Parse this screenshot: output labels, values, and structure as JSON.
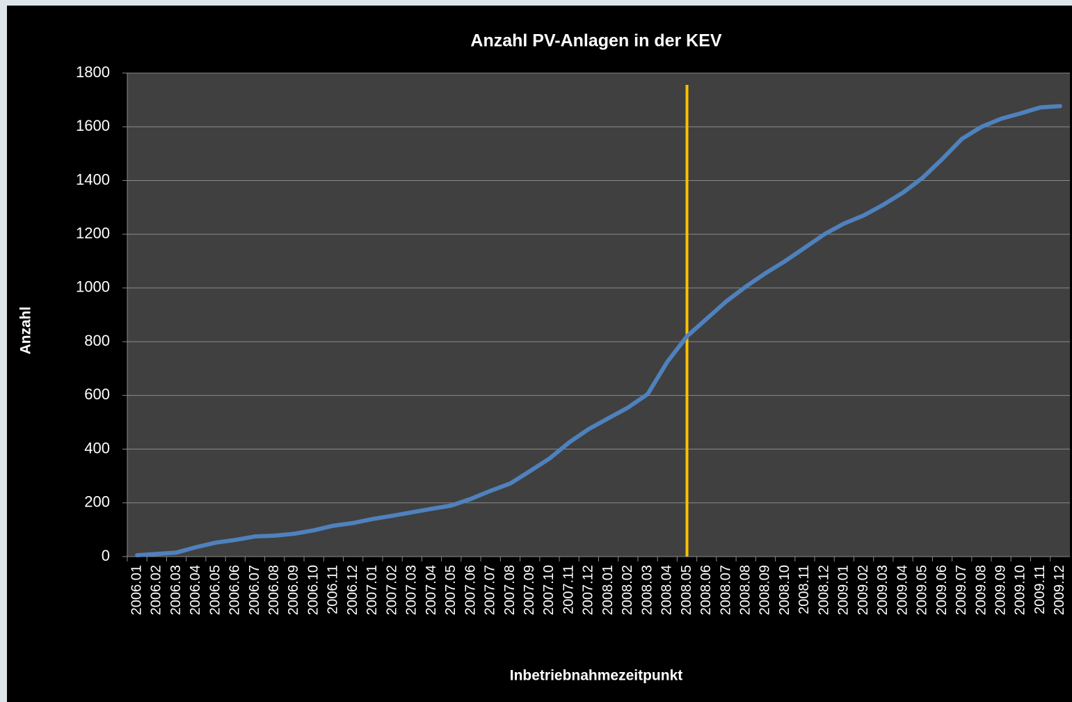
{
  "chart_data": {
    "type": "line",
    "title": "Anzahl PV-Anlagen in der KEV",
    "xlabel": "Inbetriebnahmezeitpunkt",
    "ylabel": "Anzahl",
    "categories": [
      "2006.01",
      "2006.02",
      "2006.03",
      "2006.04",
      "2006.05",
      "2006.06",
      "2006.07",
      "2006.08",
      "2006.09",
      "2006.10",
      "2006.11",
      "2006.12",
      "2007.01",
      "2007.02",
      "2007.03",
      "2007.04",
      "2007.05",
      "2007.06",
      "2007.07",
      "2007.08",
      "2007.09",
      "2007.10",
      "2007.11",
      "2007.12",
      "2008.01",
      "2008.02",
      "2008.03",
      "2008.04",
      "2008.05",
      "2008.06",
      "2008.07",
      "2008.08",
      "2008.09",
      "2008.10",
      "2008.11",
      "2008.12",
      "2009.01",
      "2009.02",
      "2009.03",
      "2009.04",
      "2009.05",
      "2009.06",
      "2009.07",
      "2009.08",
      "2009.09",
      "2009.10",
      "2009.11",
      "2009.12"
    ],
    "series": [
      {
        "name": "Anzahl",
        "color": "#4f81bd",
        "values": [
          5,
          10,
          15,
          35,
          52,
          62,
          75,
          78,
          85,
          98,
          115,
          125,
          140,
          152,
          165,
          178,
          190,
          215,
          245,
          272,
          318,
          365,
          425,
          475,
          515,
          555,
          605,
          725,
          820,
          885,
          950,
          1005,
          1055,
          1100,
          1150,
          1200,
          1240,
          1270,
          1310,
          1355,
          1410,
          1480,
          1555,
          1600,
          1630,
          1650,
          1672,
          1677
        ]
      }
    ],
    "ylim": [
      0,
      1800
    ],
    "yticks": [
      0,
      200,
      400,
      600,
      800,
      1000,
      1200,
      1400,
      1600,
      1800
    ],
    "grid": true,
    "vline": {
      "x": "2008.05",
      "color": "#ffc000"
    }
  }
}
